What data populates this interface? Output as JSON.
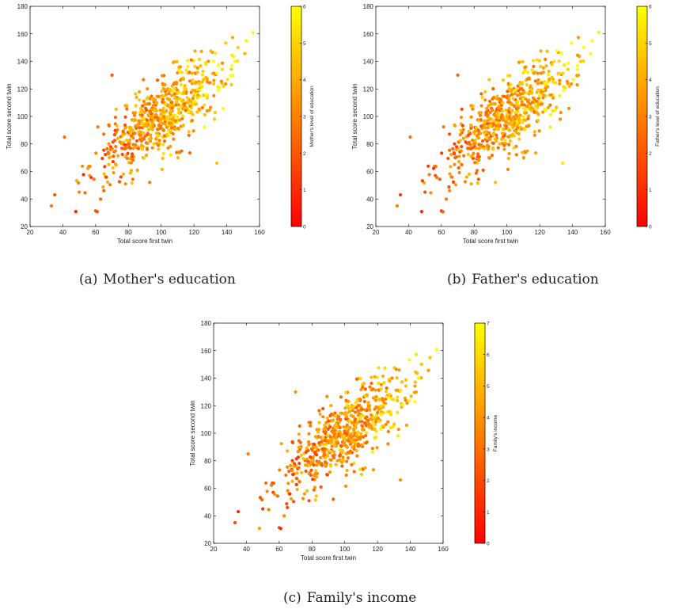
{
  "chart_data": [
    {
      "panel": "a",
      "type": "scatter",
      "caption_tag": "(a)",
      "caption_text": "Mother's education",
      "xlabel": "Total score first twin",
      "ylabel": "Total score second twin",
      "xlim": [
        20,
        160
      ],
      "ylim": [
        20,
        180
      ],
      "xticks": [
        "20",
        "40",
        "60",
        "80",
        "100",
        "120",
        "140",
        "160"
      ],
      "yticks": [
        "20",
        "40",
        "60",
        "80",
        "100",
        "120",
        "140",
        "160",
        "180"
      ],
      "colorbar_label": "Mother's level of education",
      "colorbar_range": [
        0,
        6
      ],
      "colorbar_ticks": [
        "0",
        "1",
        "2",
        "3",
        "4",
        "5",
        "6"
      ],
      "colormap": [
        "#ff0000",
        "#ff8000",
        "#ffff00"
      ],
      "grid": false,
      "point_count_approx": 650,
      "points_sample": [
        [
          33,
          35
        ],
        [
          35,
          43
        ],
        [
          41,
          85
        ],
        [
          50,
          45
        ],
        [
          65,
          46
        ],
        [
          70,
          130
        ],
        [
          93,
          52
        ],
        [
          134,
          66
        ],
        [
          145,
          140
        ],
        [
          156,
          161
        ],
        [
          152,
          155
        ],
        [
          120,
          115
        ],
        [
          100,
          100
        ],
        [
          80,
          80
        ]
      ]
    },
    {
      "panel": "b",
      "type": "scatter",
      "caption_tag": "(b)",
      "caption_text": "Father's education",
      "xlabel": "Total score first twin",
      "ylabel": "Total score second twin",
      "xlim": [
        20,
        160
      ],
      "ylim": [
        20,
        180
      ],
      "xticks": [
        "20",
        "40",
        "60",
        "80",
        "100",
        "120",
        "140",
        "160"
      ],
      "yticks": [
        "20",
        "40",
        "60",
        "80",
        "100",
        "120",
        "140",
        "160",
        "180"
      ],
      "colorbar_label": "Father's level of education",
      "colorbar_range": [
        0,
        6
      ],
      "colorbar_ticks": [
        "0",
        "1",
        "2",
        "3",
        "4",
        "5",
        "6"
      ],
      "colormap": [
        "#ff0000",
        "#ff8000",
        "#ffff00"
      ],
      "grid": false,
      "point_count_approx": 650,
      "points_sample": [
        [
          33,
          35
        ],
        [
          35,
          43
        ],
        [
          41,
          85
        ],
        [
          50,
          45
        ],
        [
          65,
          46
        ],
        [
          70,
          130
        ],
        [
          93,
          52
        ],
        [
          134,
          66
        ],
        [
          145,
          140
        ],
        [
          156,
          161
        ],
        [
          152,
          155
        ],
        [
          120,
          115
        ],
        [
          100,
          100
        ],
        [
          80,
          80
        ]
      ]
    },
    {
      "panel": "c",
      "type": "scatter",
      "caption_tag": "(c)",
      "caption_text": "Family's income",
      "xlabel": "Total score first twin",
      "ylabel": "Total score second twin",
      "xlim": [
        20,
        160
      ],
      "ylim": [
        20,
        180
      ],
      "xticks": [
        "20",
        "40",
        "60",
        "80",
        "100",
        "120",
        "140",
        "160"
      ],
      "yticks": [
        "20",
        "40",
        "60",
        "80",
        "100",
        "120",
        "140",
        "160",
        "180"
      ],
      "colorbar_label": "Family's income",
      "colorbar_range": [
        0,
        7
      ],
      "colorbar_ticks": [
        "0",
        "1",
        "2",
        "3",
        "4",
        "5",
        "6",
        "7"
      ],
      "colormap": [
        "#ff0000",
        "#ff8000",
        "#ffff00"
      ],
      "grid": false,
      "point_count_approx": 650,
      "points_sample": [
        [
          33,
          35
        ],
        [
          35,
          43
        ],
        [
          41,
          85
        ],
        [
          50,
          45
        ],
        [
          65,
          46
        ],
        [
          70,
          130
        ],
        [
          93,
          52
        ],
        [
          134,
          66
        ],
        [
          145,
          140
        ],
        [
          156,
          161
        ],
        [
          152,
          155
        ],
        [
          120,
          115
        ],
        [
          100,
          100
        ],
        [
          80,
          80
        ]
      ]
    }
  ]
}
